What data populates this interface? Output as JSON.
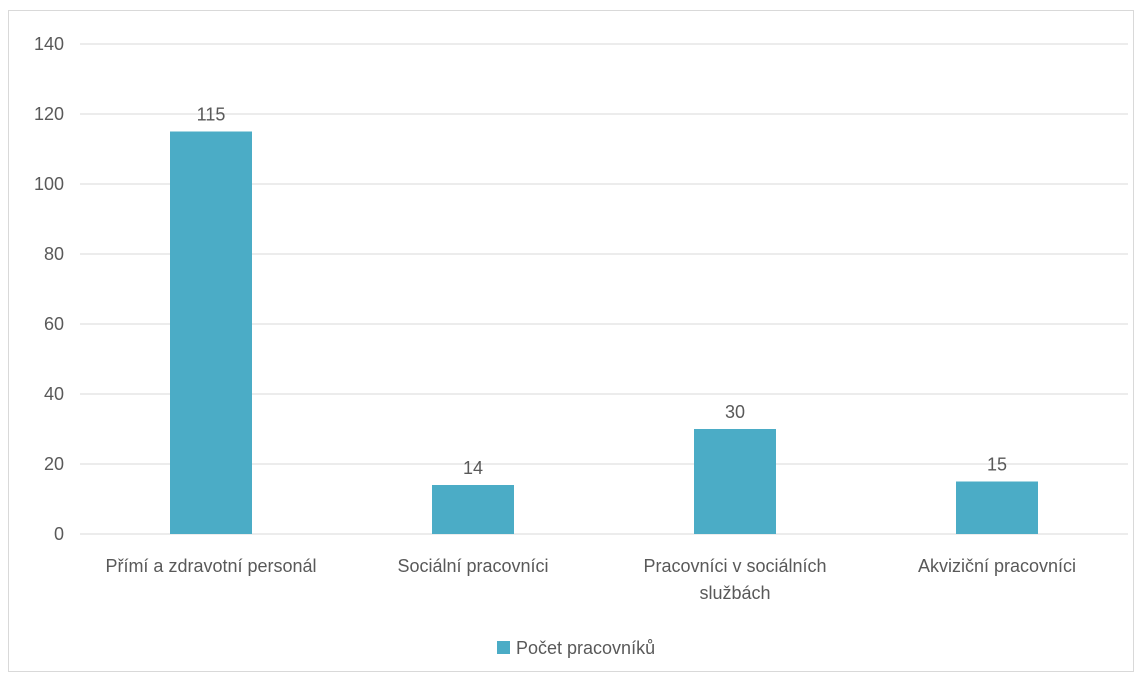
{
  "chart_data": {
    "type": "bar",
    "categories": [
      [
        "Přímí a zdravotní personál"
      ],
      [
        "Sociální pracovníci"
      ],
      [
        "Pracovníci v sociálních",
        "službách"
      ],
      [
        "Akviziční pracovníci"
      ]
    ],
    "series": [
      {
        "name": "Počet pracovníků",
        "values": [
          115,
          14,
          30,
          15
        ],
        "color": "#4bacc6"
      }
    ],
    "ylim": [
      0,
      140
    ],
    "yticks": [
      0,
      20,
      40,
      60,
      80,
      100,
      120,
      140
    ],
    "grid": true,
    "data_labels": true,
    "legend_position": "bottom",
    "gridline_color": "#d9d9d9",
    "text_color": "#595959"
  }
}
